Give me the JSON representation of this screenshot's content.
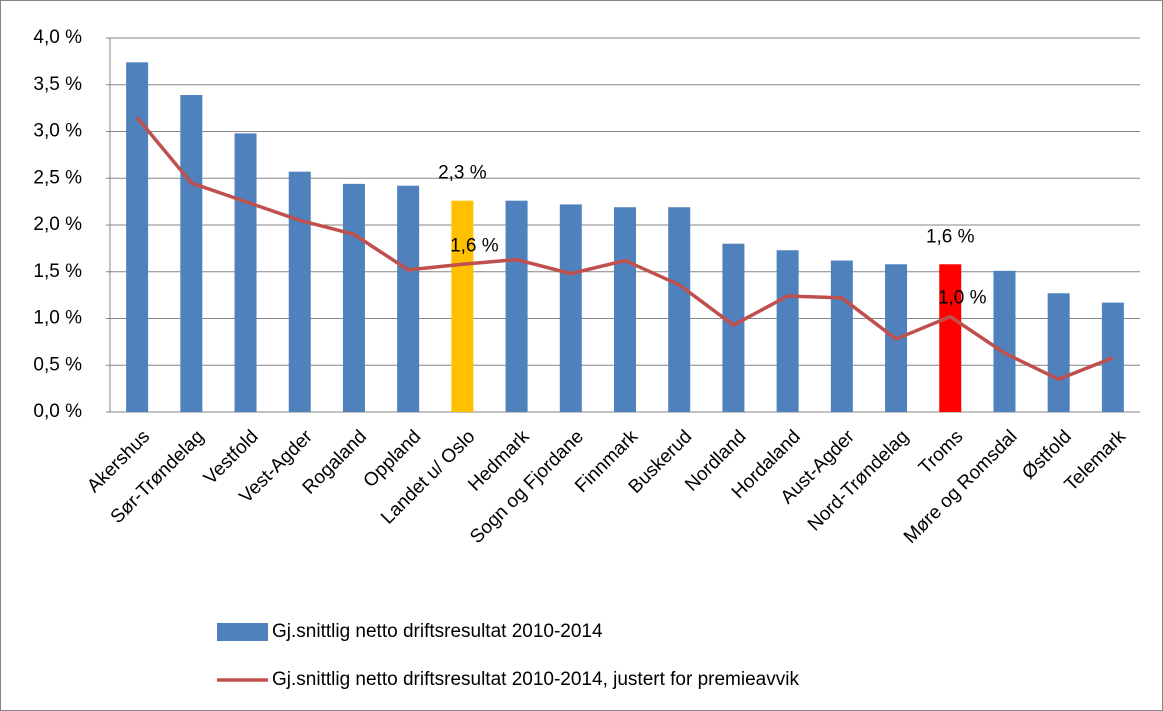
{
  "chart_data": {
    "type": "bar",
    "categories": [
      "Akershus",
      "Sør-Trøndelag",
      "Vestfold",
      "Vest-Agder",
      "Rogaland",
      "Oppland",
      "Landet u/ Oslo",
      "Hedmark",
      "Sogn og Fjordane",
      "Finnmark",
      "Buskerud",
      "Nordland",
      "Hordaland",
      "Aust-Agder",
      "Nord-Trøndelag",
      "Troms",
      "Møre og Romsdal",
      "Østfold",
      "Telemark"
    ],
    "series": [
      {
        "name": "Gj.snittlig netto driftsresultat 2010-2014",
        "type": "bar",
        "color": "#4f81bd",
        "colors": [
          "#4f81bd",
          "#4f81bd",
          "#4f81bd",
          "#4f81bd",
          "#4f81bd",
          "#4f81bd",
          "#ffc000",
          "#4f81bd",
          "#4f81bd",
          "#4f81bd",
          "#4f81bd",
          "#4f81bd",
          "#4f81bd",
          "#4f81bd",
          "#4f81bd",
          "#ff0000",
          "#4f81bd",
          "#4f81bd",
          "#4f81bd"
        ],
        "values": [
          3.74,
          3.39,
          2.98,
          2.57,
          2.44,
          2.42,
          2.26,
          2.26,
          2.22,
          2.19,
          2.19,
          1.8,
          1.73,
          1.62,
          1.58,
          1.58,
          1.51,
          1.27,
          1.17
        ],
        "value_labels": [
          null,
          null,
          null,
          null,
          null,
          null,
          "2,3 %",
          null,
          null,
          null,
          null,
          null,
          null,
          null,
          null,
          "1,6 %",
          null,
          null,
          null
        ]
      },
      {
        "name": "Gj.snittlig netto driftsresultat 2010-2014, justert for premieavvik",
        "type": "line",
        "color": "#c0504d",
        "values": [
          3.15,
          2.45,
          2.25,
          2.05,
          1.9,
          1.52,
          1.58,
          1.63,
          1.48,
          1.62,
          1.36,
          0.93,
          1.24,
          1.22,
          0.78,
          1.02,
          0.63,
          0.35,
          0.58
        ],
        "value_labels": [
          null,
          null,
          null,
          null,
          null,
          null,
          "1,6 %",
          null,
          null,
          null,
          null,
          null,
          null,
          null,
          null,
          "1,0 %",
          null,
          null,
          null
        ]
      }
    ],
    "ylim": [
      0,
      4
    ],
    "yticks": [
      {
        "value": 0,
        "label": "0,0 %"
      },
      {
        "value": 0.5,
        "label": "0,5 %"
      },
      {
        "value": 1,
        "label": "1,0 %"
      },
      {
        "value": 1.5,
        "label": "1,5 %"
      },
      {
        "value": 2,
        "label": "2,0 %"
      },
      {
        "value": 2.5,
        "label": "2,5 %"
      },
      {
        "value": 3,
        "label": "3,0 %"
      },
      {
        "value": 3.5,
        "label": "3,5 %"
      },
      {
        "value": 4,
        "label": "4,0 %"
      }
    ],
    "grid": true,
    "legend": "bottom"
  }
}
